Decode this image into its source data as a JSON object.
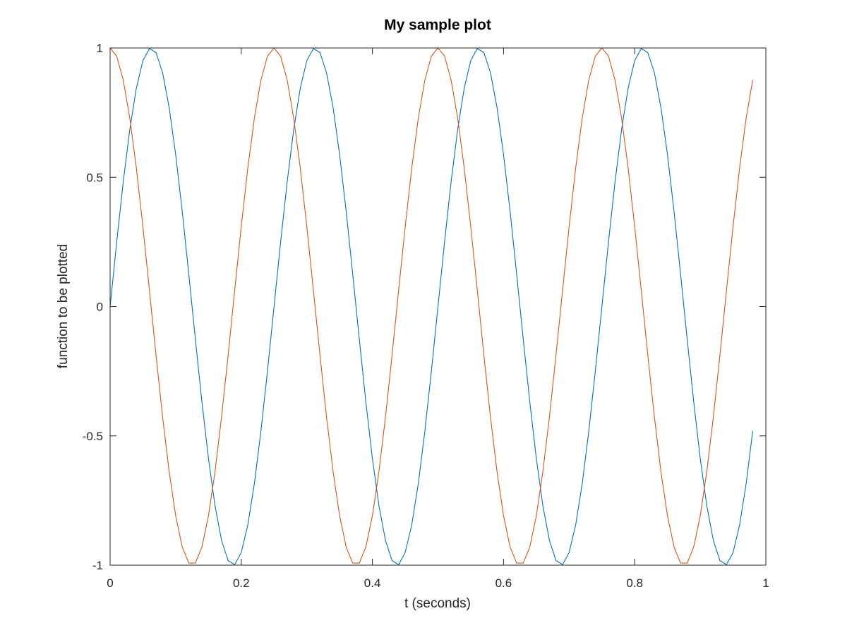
{
  "chart_data": {
    "type": "line",
    "title": "My sample plot",
    "xlabel": "t (seconds)",
    "ylabel": "function to be plotted",
    "xlim": [
      0,
      1
    ],
    "ylim": [
      -1,
      1
    ],
    "x_ticks": [
      0,
      0.2,
      0.4,
      0.6,
      0.8,
      1
    ],
    "x_tick_labels": [
      "0",
      "0.2",
      "0.4",
      "0.6",
      "0.8",
      "1"
    ],
    "y_ticks": [
      -1,
      -0.5,
      0,
      0.5,
      1
    ],
    "y_tick_labels": [
      "-1",
      "-0.5",
      "0",
      "0.5",
      "1"
    ],
    "grid": false,
    "legend": "none",
    "x": [
      0,
      0.01,
      0.02,
      0.03,
      0.04,
      0.05,
      0.06,
      0.07,
      0.08,
      0.09,
      0.1,
      0.11,
      0.12,
      0.13,
      0.14,
      0.15,
      0.16,
      0.17,
      0.18,
      0.19,
      0.2,
      0.21,
      0.22,
      0.23,
      0.24,
      0.25,
      0.26,
      0.27,
      0.28,
      0.29,
      0.3,
      0.31,
      0.32,
      0.33,
      0.34,
      0.35,
      0.36,
      0.37,
      0.38,
      0.39,
      0.4,
      0.41,
      0.42,
      0.43,
      0.44,
      0.45,
      0.46,
      0.47,
      0.48,
      0.49,
      0.5,
      0.51,
      0.52,
      0.53,
      0.54,
      0.55,
      0.56,
      0.57,
      0.58,
      0.59,
      0.6,
      0.61,
      0.62,
      0.63,
      0.64,
      0.65,
      0.66,
      0.67,
      0.68,
      0.69,
      0.7,
      0.71,
      0.72,
      0.73,
      0.74,
      0.75,
      0.76,
      0.77,
      0.78,
      0.79,
      0.8,
      0.81,
      0.82,
      0.83,
      0.84,
      0.85,
      0.86,
      0.87,
      0.88,
      0.89,
      0.9,
      0.91,
      0.92,
      0.93,
      0.94,
      0.95,
      0.96,
      0.97,
      0.98
    ],
    "series": [
      {
        "color": "#0072BD",
        "values": [
          0,
          0.2487,
          0.4818,
          0.6845,
          0.8443,
          0.9511,
          0.998,
          0.9823,
          0.9048,
          0.7705,
          0.5878,
          0.3681,
          0.1253,
          -0.1253,
          -0.3681,
          -0.5878,
          -0.7705,
          -0.9048,
          -0.9823,
          -0.998,
          -0.9511,
          -0.8443,
          -0.6845,
          -0.4818,
          -0.2487,
          0,
          0.2487,
          0.4818,
          0.6845,
          0.8443,
          0.9511,
          0.998,
          0.9823,
          0.9048,
          0.7705,
          0.5878,
          0.3681,
          0.1253,
          -0.1253,
          -0.3681,
          -0.5878,
          -0.7705,
          -0.9048,
          -0.9823,
          -0.998,
          -0.9511,
          -0.8443,
          -0.6845,
          -0.4818,
          -0.2487,
          0,
          0.2487,
          0.4818,
          0.6845,
          0.8443,
          0.9511,
          0.998,
          0.9823,
          0.9048,
          0.7705,
          0.5878,
          0.3681,
          0.1253,
          -0.1253,
          -0.3681,
          -0.5878,
          -0.7705,
          -0.9048,
          -0.9823,
          -0.998,
          -0.9511,
          -0.8443,
          -0.6845,
          -0.4818,
          -0.2487,
          0,
          0.2487,
          0.4818,
          0.6845,
          0.8443,
          0.9511,
          0.998,
          0.9823,
          0.9048,
          0.7705,
          0.5878,
          0.3681,
          0.1253,
          -0.1253,
          -0.3681,
          -0.5878,
          -0.7705,
          -0.9048,
          -0.9823,
          -0.998,
          -0.9511,
          -0.8443,
          -0.6845,
          -0.4818
        ]
      },
      {
        "color": "#D95319",
        "values": [
          1,
          0.9686,
          0.8763,
          0.729,
          0.5358,
          0.309,
          0.0628,
          -0.1874,
          -0.4258,
          -0.6374,
          -0.809,
          -0.9298,
          -0.9921,
          -0.9921,
          -0.9298,
          -0.809,
          -0.6374,
          -0.4258,
          -0.1874,
          0.0628,
          0.309,
          0.5358,
          0.729,
          0.8763,
          0.9686,
          1,
          0.9686,
          0.8763,
          0.729,
          0.5358,
          0.309,
          0.0628,
          -0.1874,
          -0.4258,
          -0.6374,
          -0.809,
          -0.9298,
          -0.9921,
          -0.9921,
          -0.9298,
          -0.809,
          -0.6374,
          -0.4258,
          -0.1874,
          0.0628,
          0.309,
          0.5358,
          0.729,
          0.8763,
          0.9686,
          1,
          0.9686,
          0.8763,
          0.729,
          0.5358,
          0.309,
          0.0628,
          -0.1874,
          -0.4258,
          -0.6374,
          -0.809,
          -0.9298,
          -0.9921,
          -0.9921,
          -0.9298,
          -0.809,
          -0.6374,
          -0.4258,
          -0.1874,
          0.0628,
          0.309,
          0.5358,
          0.729,
          0.8763,
          0.9686,
          1,
          0.9686,
          0.8763,
          0.729,
          0.5358,
          0.309,
          0.0628,
          -0.1874,
          -0.4258,
          -0.6374,
          -0.809,
          -0.9298,
          -0.9921,
          -0.9921,
          -0.9298,
          -0.809,
          -0.6374,
          -0.4258,
          -0.1874,
          0.0628,
          0.309,
          0.5358,
          0.729,
          0.8763
        ]
      }
    ]
  }
}
